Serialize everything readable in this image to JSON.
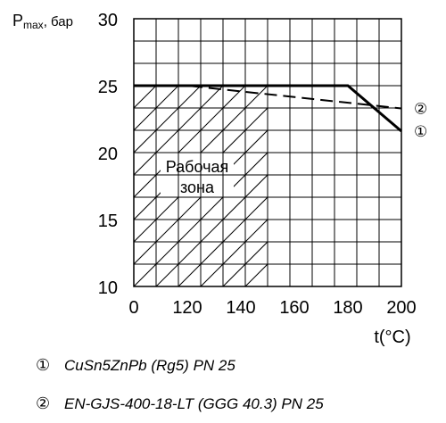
{
  "chart_data": {
    "type": "line",
    "title": "",
    "ylabel_main": "P",
    "ylabel_sub": "max",
    "ylabel_unit": ", бар",
    "xlabel": "t(°C)",
    "x_ticks": [
      "0",
      "120",
      "140",
      "160",
      "180",
      "200"
    ],
    "x_values": [
      0,
      120,
      140,
      160,
      180,
      200
    ],
    "y_ticks": [
      30,
      25,
      20,
      15,
      10
    ],
    "ylim": [
      10,
      30
    ],
    "grid": true,
    "zone_label": [
      "Рабочая",
      "зона"
    ],
    "working_zone": {
      "x_max": 150,
      "y_max": 25
    },
    "series": [
      {
        "marker": "①",
        "style": "solid",
        "x": [
          0,
          180,
          200
        ],
        "y": [
          25,
          25,
          21.6
        ]
      },
      {
        "marker": "②",
        "style": "dashed",
        "x": [
          0,
          120,
          200
        ],
        "y": [
          25,
          25,
          23.3
        ]
      }
    ]
  },
  "legend": [
    {
      "marker": "①",
      "label": "CuSn5ZnPb (Rg5) PN 25"
    },
    {
      "marker": "②",
      "label": "EN-GJS-400-18-LT (GGG 40.3) PN 25"
    }
  ]
}
